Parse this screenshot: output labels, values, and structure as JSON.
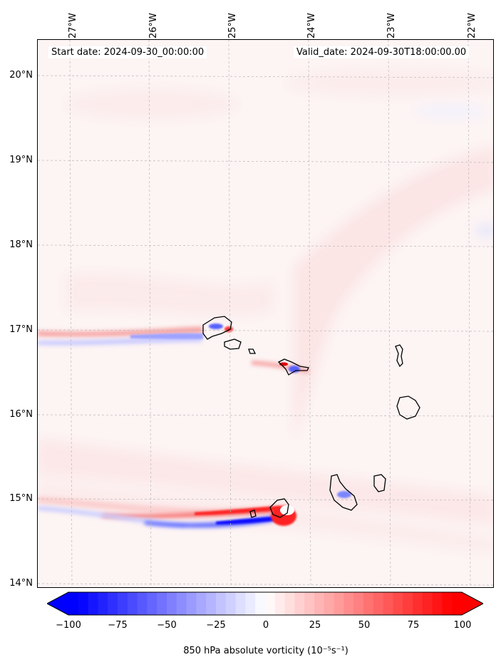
{
  "header": {
    "start_date": "Start date: 2024-09-30_00:00:00",
    "valid_date": "Valid_date: 2024-09-30T18:00:00.00"
  },
  "axes": {
    "lon_ticks": [
      "27°W",
      "26°W",
      "25°W",
      "24°W",
      "23°W",
      "22°W"
    ],
    "lat_ticks": [
      "20°N",
      "19°N",
      "18°N",
      "17°N",
      "16°N",
      "15°N",
      "14°N"
    ]
  },
  "colorbar": {
    "ticks": [
      "−100",
      "−75",
      "−50",
      "−25",
      "0",
      "25",
      "50",
      "75",
      "100"
    ],
    "label": "850 hPa absolute vorticity (10⁻⁵s⁻¹)",
    "min": -100,
    "max": 100,
    "colors": {
      "negative": "#0000ff",
      "neutral": "#ffffff",
      "positive": "#ff0000"
    }
  },
  "chart_data": {
    "type": "heatmap",
    "title": "",
    "extent": {
      "lon_min": -27.3,
      "lon_max": -21.95,
      "lat_min": 13.95,
      "lat_max": 20.4
    },
    "grid": true,
    "islands": [
      {
        "name": "Santo Antão",
        "lon": -25.15,
        "lat": 17.03
      },
      {
        "name": "São Vicente",
        "lon": -24.98,
        "lat": 16.83
      },
      {
        "name": "Santa Luzia",
        "lon": -24.74,
        "lat": 16.76
      },
      {
        "name": "São Nicolau",
        "lon": -24.28,
        "lat": 16.61
      },
      {
        "name": "Sal",
        "lon": -22.94,
        "lat": 16.74
      },
      {
        "name": "Boa Vista",
        "lon": -22.83,
        "lat": 16.09
      },
      {
        "name": "Maio",
        "lon": -23.17,
        "lat": 15.22
      },
      {
        "name": "Santiago",
        "lon": -23.63,
        "lat": 15.08
      },
      {
        "name": "Fogo",
        "lon": -24.38,
        "lat": 14.92
      },
      {
        "name": "Brava",
        "lon": -24.72,
        "lat": 14.85
      }
    ],
    "features": [
      {
        "kind": "positive-streak",
        "lat": 16.98,
        "lon_from": -27.3,
        "lon_to": -25.2,
        "value": 40
      },
      {
        "kind": "negative-streak",
        "lat": 16.92,
        "lon_from": -27.2,
        "lon_to": -25.2,
        "value": -25
      },
      {
        "kind": "positive-streak",
        "lat": 14.87,
        "lon_from": -27.3,
        "lon_to": -24.4,
        "value": 60
      },
      {
        "kind": "negative-streak",
        "lat": 14.8,
        "lon_from": -27.0,
        "lon_to": -24.4,
        "value": -60
      }
    ]
  }
}
